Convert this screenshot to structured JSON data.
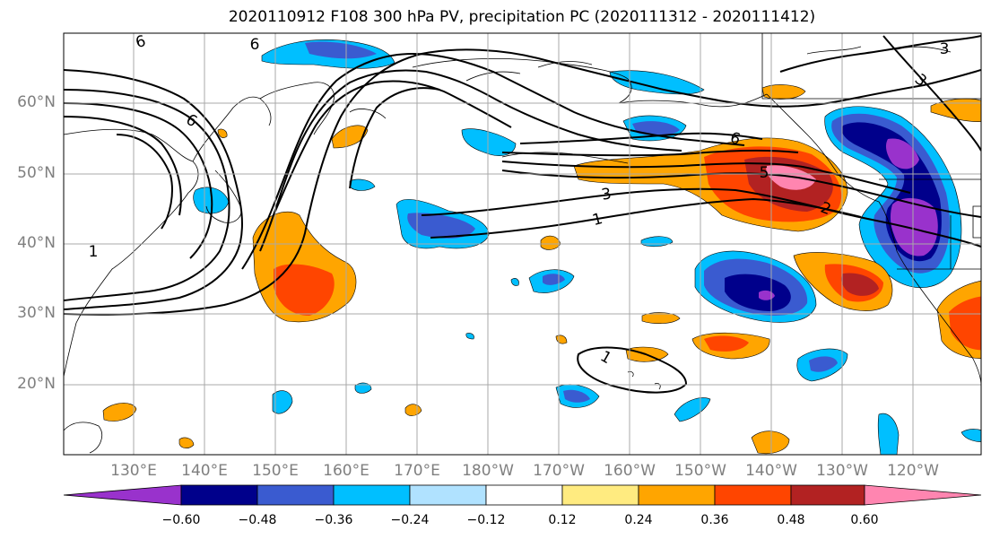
{
  "title": "2020110912 F108 300 hPa PV, precipitation PC (2020111312 - 2020111412)",
  "latitude_labels": [
    "60°N",
    "50°N",
    "40°N",
    "30°N",
    "20°N"
  ],
  "longitude_labels": [
    "130°E",
    "140°E",
    "150°E",
    "160°E",
    "170°E",
    "180°W",
    "170°W",
    "160°W",
    "150°W",
    "140°W",
    "130°W",
    "120°W"
  ],
  "colorbar": {
    "tick_labels": [
      "−0.60",
      "−0.48",
      "−0.36",
      "−0.24",
      "−0.12",
      "0.12",
      "0.24",
      "0.36",
      "0.48",
      "0.60"
    ],
    "colors": [
      "#9932cc",
      "#00008b",
      "#3a5bd0",
      "#00bfff",
      "#b0e2ff",
      "#ffffff",
      "#ffeb80",
      "#ffa500",
      "#ff4500",
      "#b22222",
      "#ff85b0"
    ]
  },
  "contour_labels": [
    "6",
    "6",
    "6",
    "6",
    "5",
    "3",
    "1",
    "1",
    "1",
    "2",
    "3",
    "3"
  ],
  "colors": {
    "grid": "#a9a9a9",
    "contour": "#000000",
    "axis_text": "#7f7f7f"
  }
}
